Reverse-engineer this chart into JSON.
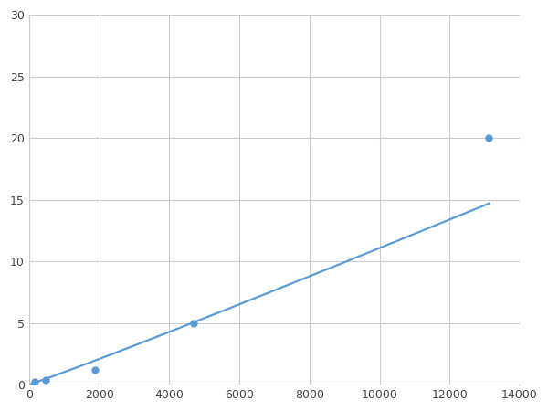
{
  "x_points": [
    156,
    469,
    1875,
    4688,
    13125
  ],
  "y_points": [
    0.2,
    0.4,
    1.2,
    5.0,
    20.0
  ],
  "line_color": "#5b9bd5",
  "marker_color": "#5b9bd5",
  "marker_size": 5,
  "line_width": 1.6,
  "xlim": [
    0,
    14000
  ],
  "ylim": [
    0,
    30
  ],
  "xticks": [
    0,
    2000,
    4000,
    6000,
    8000,
    10000,
    12000,
    14000
  ],
  "yticks": [
    0,
    5,
    10,
    15,
    20,
    25,
    30
  ],
  "grid_color": "#cccccc",
  "grid_linewidth": 0.8,
  "background_color": "#ffffff",
  "figsize": [
    6.0,
    4.5
  ],
  "dpi": 100
}
